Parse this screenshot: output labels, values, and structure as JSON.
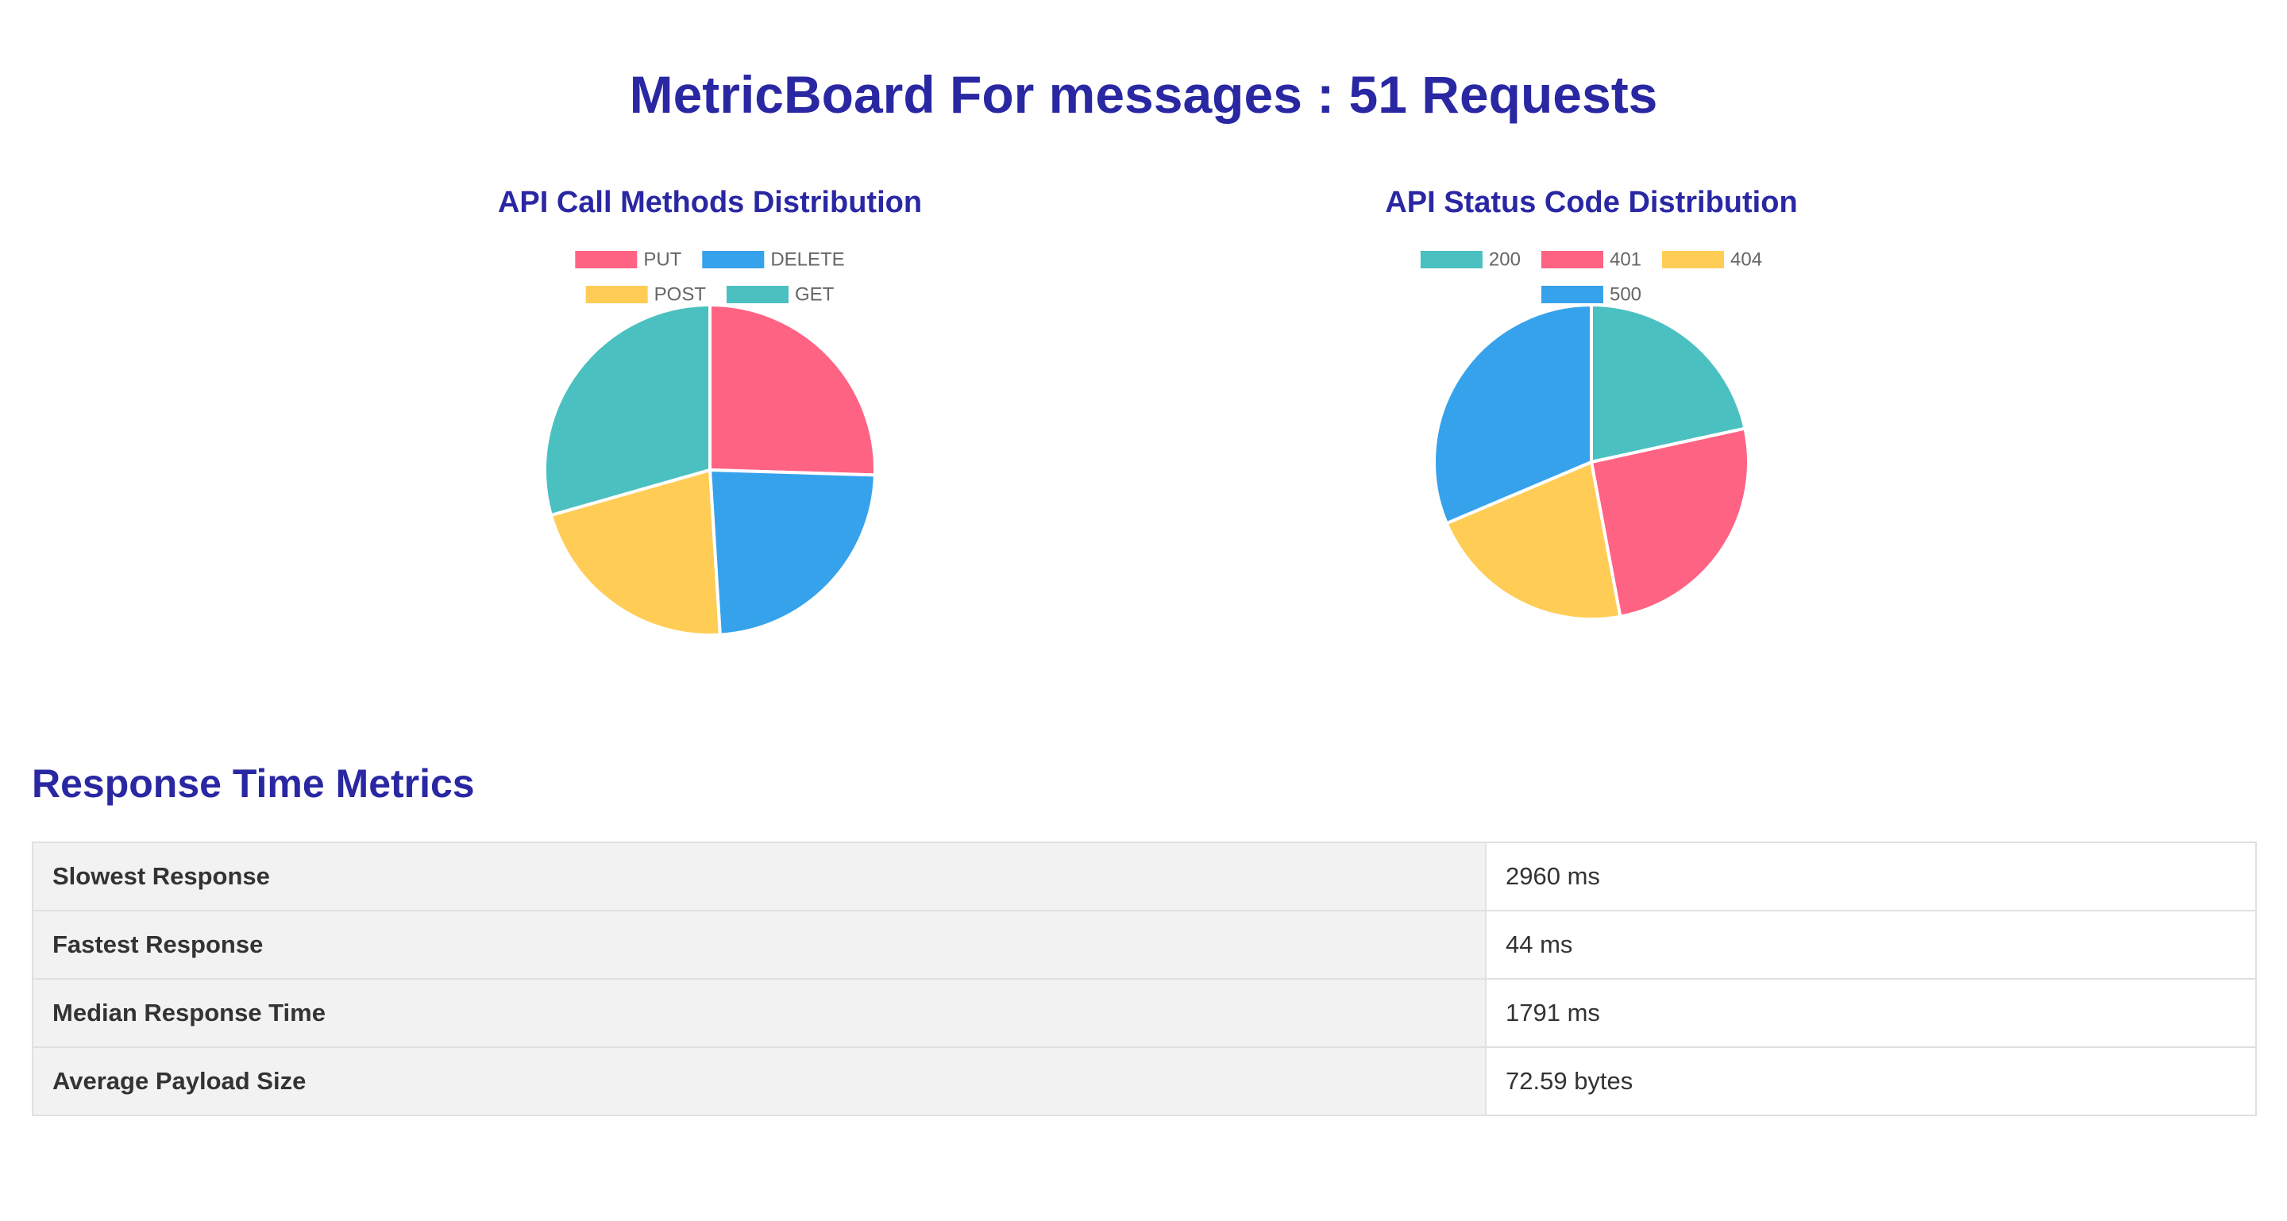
{
  "page": {
    "title": "MetricBoard For messages : 51 Requests"
  },
  "chart_data": [
    {
      "type": "pie",
      "title": "API Call Methods Distribution",
      "categories": [
        "PUT",
        "DELETE",
        "POST",
        "GET"
      ],
      "values": [
        13,
        12,
        11,
        15
      ],
      "colors": [
        "#ff6384",
        "#36a2eb",
        "#ffcd56",
        "#4bc0c0"
      ],
      "legend_placement": "top"
    },
    {
      "type": "pie",
      "title": "API Status Code Distribution",
      "categories": [
        "200",
        "401",
        "404",
        "500"
      ],
      "values": [
        11,
        13,
        11,
        16
      ],
      "colors": [
        "#4bc0c0",
        "#ff6384",
        "#ffcd56",
        "#36a2eb"
      ],
      "legend_placement": "top"
    }
  ],
  "metrics": {
    "heading": "Response Time Metrics",
    "rows": [
      {
        "label": "Slowest Response",
        "value": "2960 ms"
      },
      {
        "label": "Fastest Response",
        "value": "44 ms"
      },
      {
        "label": "Median Response Time",
        "value": "1791 ms"
      },
      {
        "label": "Average Payload Size",
        "value": "72.59 bytes"
      }
    ]
  }
}
